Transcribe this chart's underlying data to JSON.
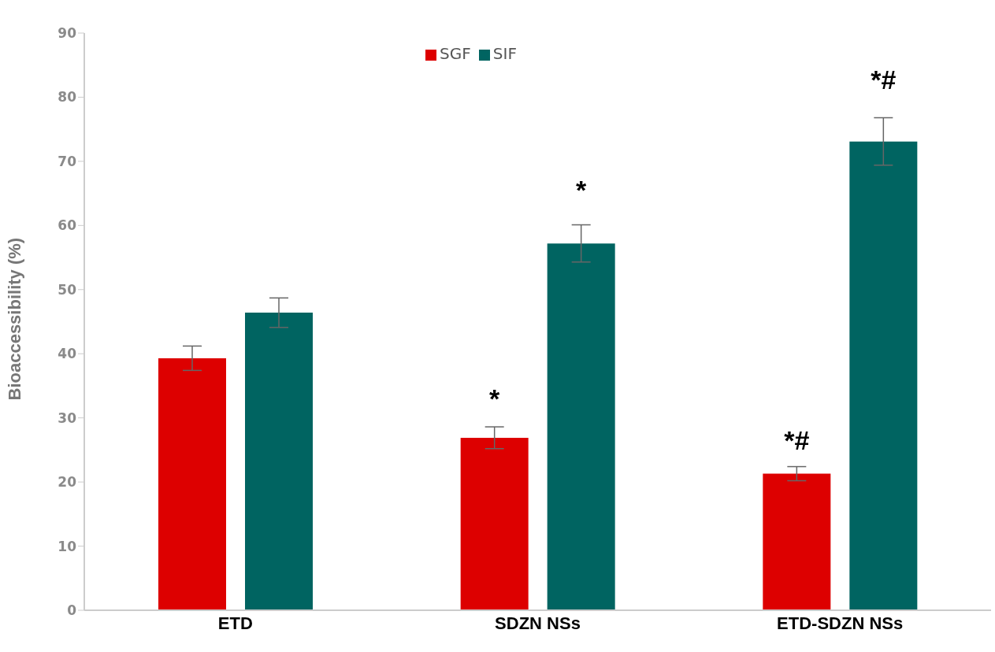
{
  "chart_data": {
    "type": "bar",
    "ylabel": "Bioaccessibility (%)",
    "categories": [
      "ETD",
      "SDZN NSs",
      "ETD-SDZN NSs"
    ],
    "series": [
      {
        "name": "SGF",
        "color": "#dd0000",
        "values": [
          39.3,
          26.9,
          21.3
        ],
        "errors": [
          1.9,
          1.7,
          1.1
        ]
      },
      {
        "name": "SIF",
        "color": "#006461",
        "values": [
          46.4,
          57.2,
          73.1
        ],
        "errors": [
          2.3,
          2.9,
          3.7
        ]
      }
    ],
    "ylim": [
      0,
      90
    ],
    "yticks": [
      0,
      10,
      20,
      30,
      40,
      50,
      60,
      70,
      80,
      90
    ],
    "annotations": [
      "*",
      "*",
      "*#",
      "*#"
    ],
    "grid": false,
    "legend": "top"
  }
}
